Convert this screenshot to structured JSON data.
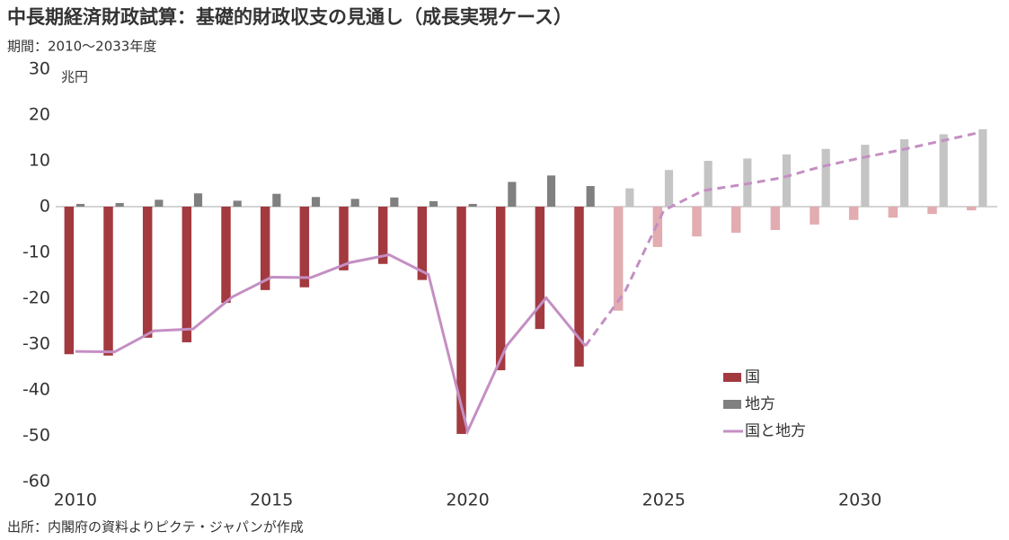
{
  "chart_data": {
    "type": "bar_line",
    "title": "中長期経済財政試算：基礎的財政収支の見通し（成長実現ケース）",
    "subtitle": "期間：2010～2033年度",
    "y_unit": "兆円",
    "source": "出所：内閣府の資料よりピクテ・ジャパンが作成",
    "x": [
      2010,
      2011,
      2012,
      2013,
      2014,
      2015,
      2016,
      2017,
      2018,
      2019,
      2020,
      2021,
      2022,
      2023,
      2024,
      2025,
      2026,
      2027,
      2028,
      2029,
      2030,
      2031,
      2032,
      2033
    ],
    "xlim": [
      2009.5,
      2033.5
    ],
    "xticks": [
      2010,
      2015,
      2020,
      2025,
      2030
    ],
    "ylim": [
      -60,
      30
    ],
    "yticks": [
      -60,
      -50,
      -40,
      -30,
      -20,
      -10,
      0,
      10,
      20,
      30
    ],
    "negative_tick_color": "#c0393b",
    "projection_start": 2024,
    "legend": "lower right",
    "series": [
      {
        "name": "国",
        "type": "bar",
        "color": "#a33a40",
        "projected_color": "#e2acb0",
        "values": [
          -32.2,
          -32.5,
          -28.6,
          -29.6,
          -21,
          -18.2,
          -17.6,
          -13.9,
          -12.5,
          -16,
          -49.6,
          -35.7,
          -26.7,
          -34.9,
          -22.7,
          -8.8,
          -6.5,
          -5.7,
          -5.1,
          -3.9,
          -2.9,
          -2.4,
          -1.6,
          -0.8
        ]
      },
      {
        "name": "地方",
        "type": "bar",
        "color": "#808080",
        "projected_color": "#c4c4c4",
        "values": [
          0.6,
          0.8,
          1.5,
          2.9,
          1.3,
          2.8,
          2.1,
          1.7,
          2.0,
          1.2,
          0.6,
          5.4,
          6.8,
          4.5,
          4.0,
          8.0,
          10.0,
          10.5,
          11.4,
          12.6,
          13.5,
          14.7,
          15.8,
          16.9
        ]
      },
      {
        "name": "国と地方",
        "type": "line",
        "color": "#c48fc3",
        "values": [
          -31.6,
          -31.7,
          -27.1,
          -26.7,
          -19.7,
          -15.4,
          -15.5,
          -12.2,
          -10.5,
          -14.8,
          -49.0,
          -30.3,
          -19.9,
          -30.4,
          -18.7,
          -0.8,
          3.5,
          4.8,
          6.3,
          8.7,
          10.6,
          12.3,
          14.2,
          16.1
        ]
      }
    ]
  }
}
